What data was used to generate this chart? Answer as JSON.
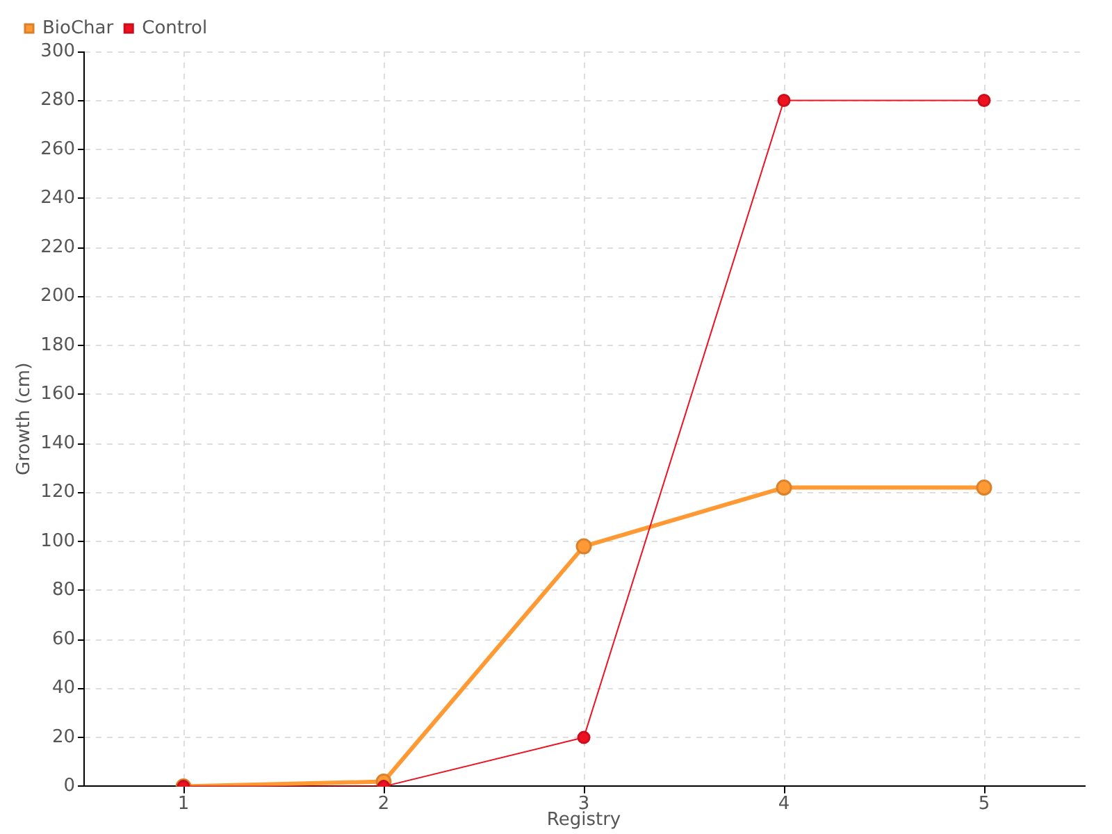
{
  "chart_data": {
    "type": "line",
    "xlabel": "Registry",
    "ylabel": "Growth (cm)",
    "categories": [
      "1",
      "2",
      "3",
      "4",
      "5"
    ],
    "series": [
      {
        "name": "BioChar",
        "color": "#ff9933",
        "values": [
          0,
          2,
          98,
          122,
          122
        ]
      },
      {
        "name": "Control",
        "color": "#ee1122",
        "values": [
          0,
          0,
          20,
          280,
          280
        ]
      }
    ],
    "ylim": [
      0,
      300
    ],
    "yticks": [
      0,
      20,
      40,
      60,
      80,
      100,
      120,
      140,
      160,
      180,
      200,
      220,
      240,
      260,
      280,
      300
    ],
    "grid": true,
    "legend": "top left",
    "marker": "circle",
    "line_style": "solid"
  }
}
